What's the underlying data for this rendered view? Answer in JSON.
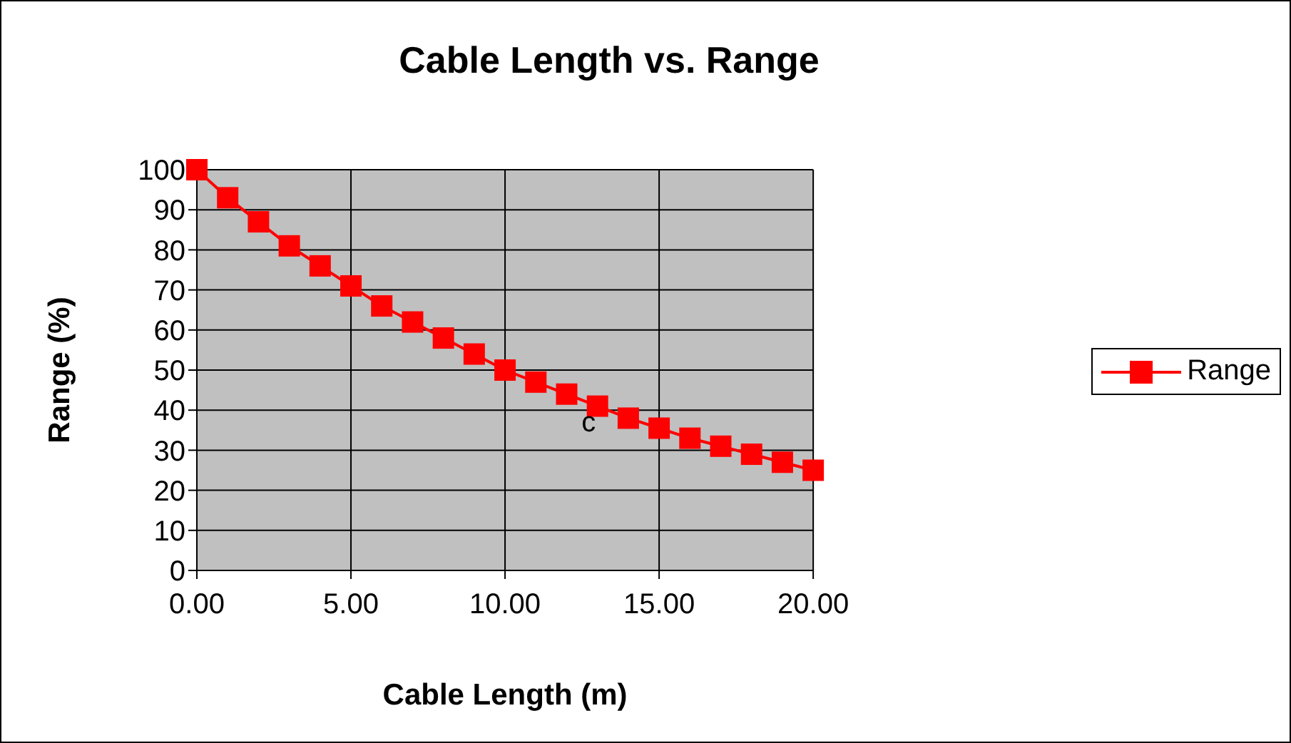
{
  "chart_data": {
    "type": "line",
    "title": "Cable Length vs. Range",
    "xlabel": "Cable Length (m)",
    "ylabel": "Range (%)",
    "x": [
      0,
      1,
      2,
      3,
      4,
      5,
      6,
      7,
      8,
      9,
      10,
      11,
      12,
      13,
      14,
      15,
      16,
      17,
      18,
      19,
      20
    ],
    "series": [
      {
        "name": "Range",
        "color": "#ff0000",
        "values": [
          100,
          93,
          87,
          81,
          76,
          71,
          66,
          62,
          58,
          54,
          50,
          47,
          44,
          41,
          38,
          35.5,
          33,
          31,
          29,
          27,
          25
        ]
      }
    ],
    "xlim": [
      0,
      20
    ],
    "xticks": [
      {
        "value": 0,
        "label": "0.00"
      },
      {
        "value": 5,
        "label": "5.00"
      },
      {
        "value": 10,
        "label": "10.00"
      },
      {
        "value": 15,
        "label": "15.00"
      },
      {
        "value": 20,
        "label": "20.00"
      }
    ],
    "ylim": [
      0,
      100
    ],
    "yticks": [
      0,
      10,
      20,
      30,
      40,
      50,
      60,
      70,
      80,
      90,
      100
    ],
    "grid": true,
    "legend": "right",
    "marker": "square",
    "line_style": "solid",
    "annotations": [
      {
        "text": "c",
        "x": 12.9,
        "y": 40
      }
    ]
  }
}
